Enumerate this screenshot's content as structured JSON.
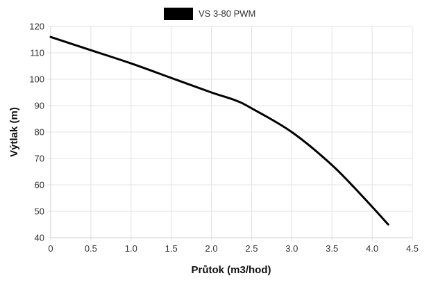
{
  "chart_data": {
    "type": "line",
    "title": "",
    "xlabel": "Průtok (m3/hod)",
    "ylabel": "Výtlak (m)",
    "xlim": [
      0,
      4.5
    ],
    "ylim": [
      40,
      120
    ],
    "x_ticks": [
      "0",
      "0.5",
      "1.0",
      "1.5",
      "2.0",
      "2.5",
      "3.0",
      "3.5",
      "4.0",
      "4.5"
    ],
    "y_ticks": [
      "40",
      "50",
      "60",
      "70",
      "80",
      "90",
      "100",
      "110",
      "120"
    ],
    "grid": true,
    "legend": "top-center",
    "series": [
      {
        "name": "VS 3-80 PWM",
        "color": "#000000",
        "x": [
          0,
          0.5,
          1.0,
          1.5,
          2.0,
          2.3,
          2.5,
          3.0,
          3.5,
          3.9,
          4.2
        ],
        "y": [
          116,
          111,
          106,
          100.5,
          95,
          92,
          89,
          80,
          67.5,
          55,
          45
        ]
      }
    ]
  }
}
